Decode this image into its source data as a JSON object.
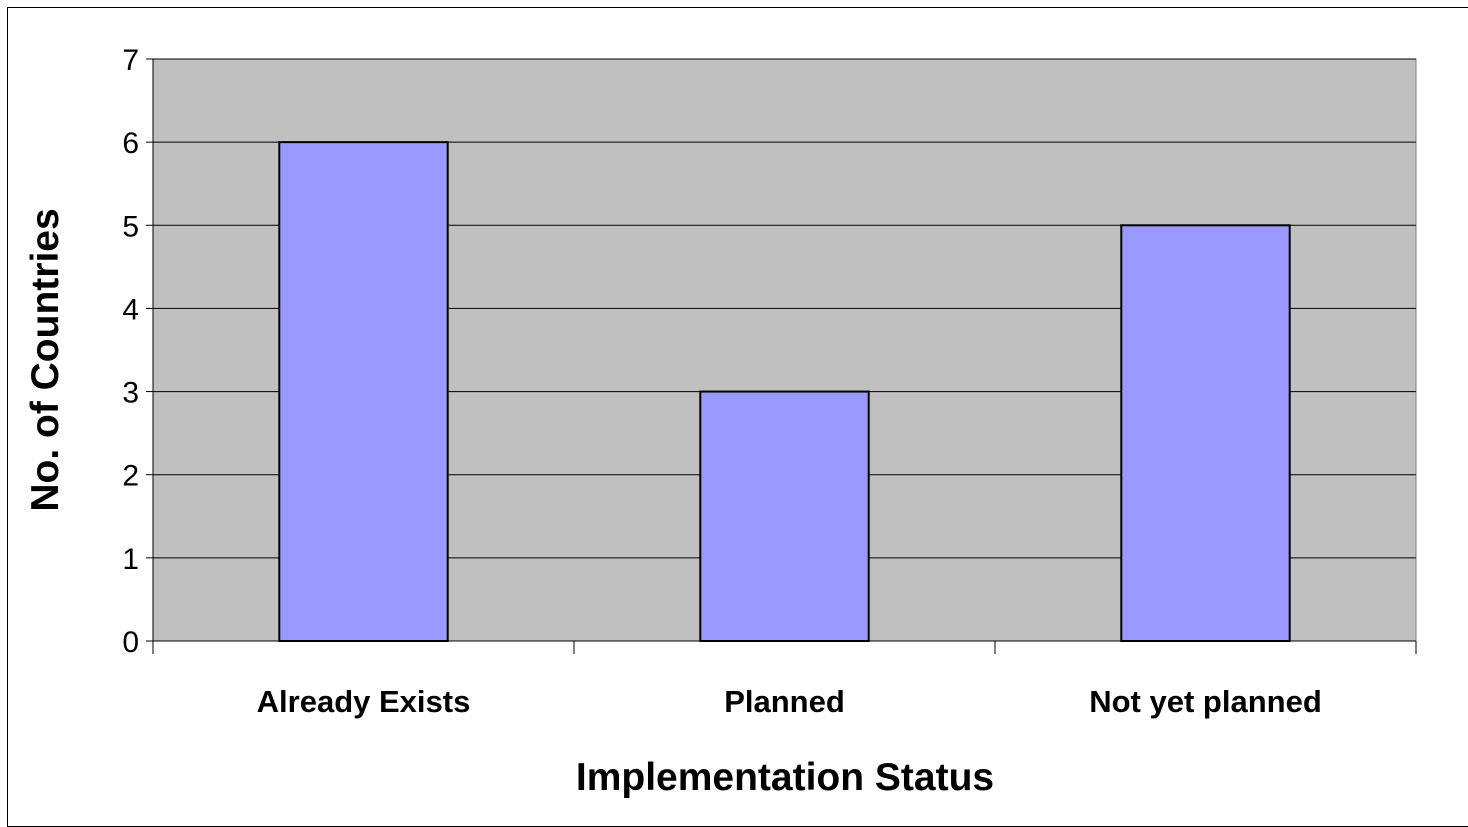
{
  "chart_data": {
    "type": "bar",
    "categories": [
      "Already Exists",
      "Planned",
      "Not yet planned"
    ],
    "values": [
      6,
      3,
      5
    ],
    "title": "",
    "xlabel": "Implementation Status",
    "ylabel": "No. of Countries",
    "ylim": [
      0,
      7
    ],
    "yticks": [
      0,
      1,
      2,
      3,
      4,
      5,
      6,
      7
    ],
    "grid": true,
    "legend": "none",
    "colors": {
      "plot_background": "#C0C0C0",
      "bar_fill": "#9999FF",
      "bar_stroke": "#000000",
      "gridline": "#000000"
    }
  }
}
